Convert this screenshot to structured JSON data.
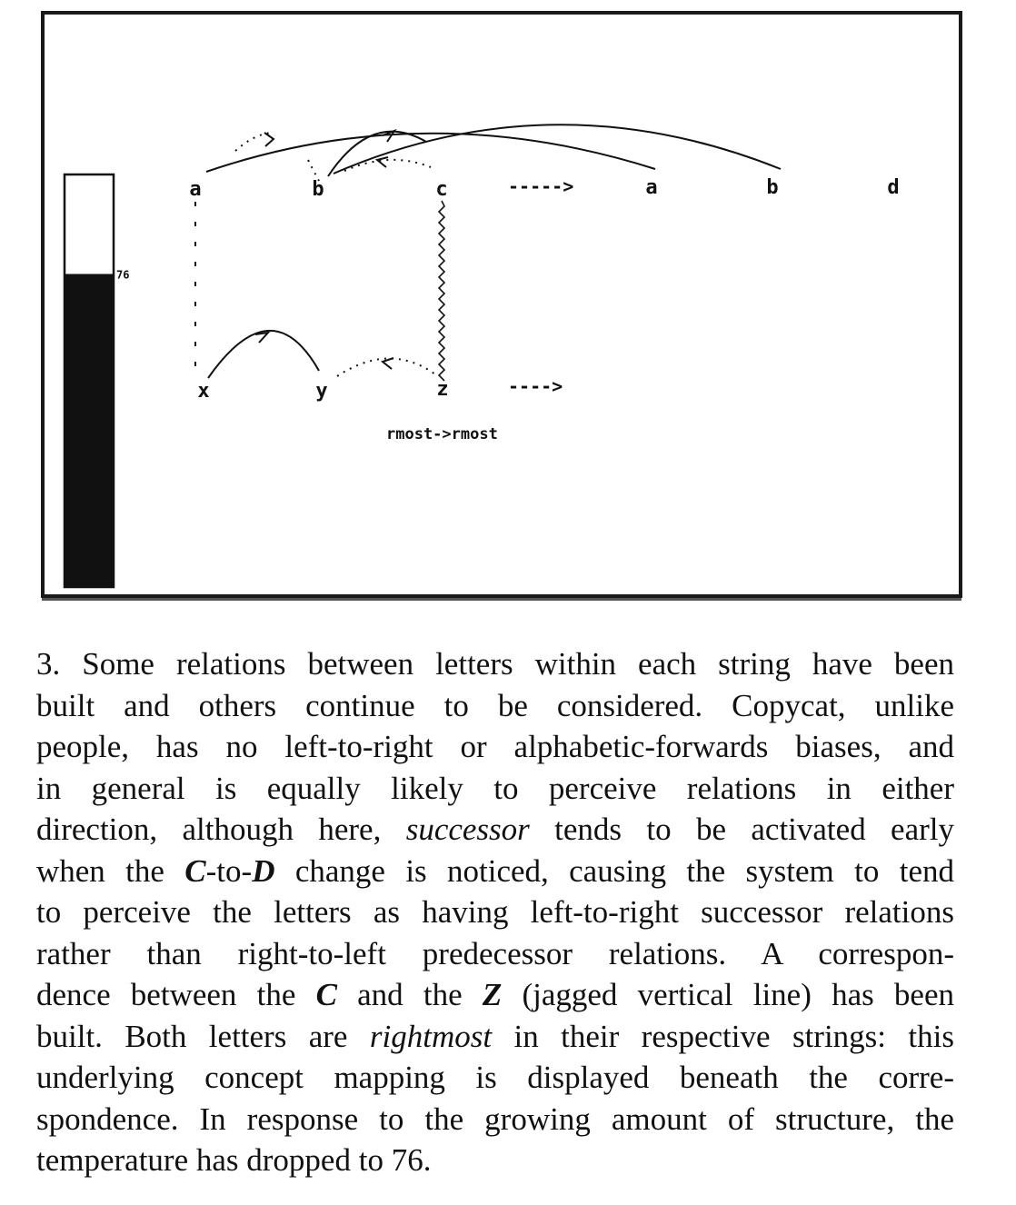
{
  "figure": {
    "temperature_label": "76",
    "temperature": 76,
    "initial_string": [
      "a",
      "b",
      "c"
    ],
    "modified_string": [
      "a",
      "b",
      "d"
    ],
    "target_string": [
      "x",
      "y",
      "z"
    ],
    "change_arrow": "----->",
    "target_arrow": "---->",
    "concept_mapping": "rmost->rmost"
  },
  "caption": {
    "lines": [
      "3. Some relations between letters within each string have been",
      "built and others continue to be considered. Copycat, unlike",
      "people, has no left-to-right or alphabetic-forwards biases, and",
      "in general is equally likely to perceive relations in either",
      [
        "direction, although here, ",
        {
          "em": "successor"
        },
        " tends to be activated early"
      ],
      [
        "when the ",
        {
          "b": "C"
        },
        "-to-",
        {
          "b": "D"
        },
        " change is noticed, causing the system to tend"
      ],
      "to perceive the letters as having left-to-right successor relations",
      "rather than right-to-left predecessor relations. A correspon-",
      [
        "dence between the ",
        {
          "b": "C"
        },
        " and the ",
        {
          "b": "Z"
        },
        " (jagged vertical line) has been"
      ],
      [
        "built. Both letters are ",
        {
          "em": "rightmost"
        },
        " in their respective strings: this"
      ],
      "underlying concept mapping is displayed beneath the corre-",
      "spondence. In response to the growing amount of structure, the",
      "temperature has dropped to 76."
    ]
  }
}
